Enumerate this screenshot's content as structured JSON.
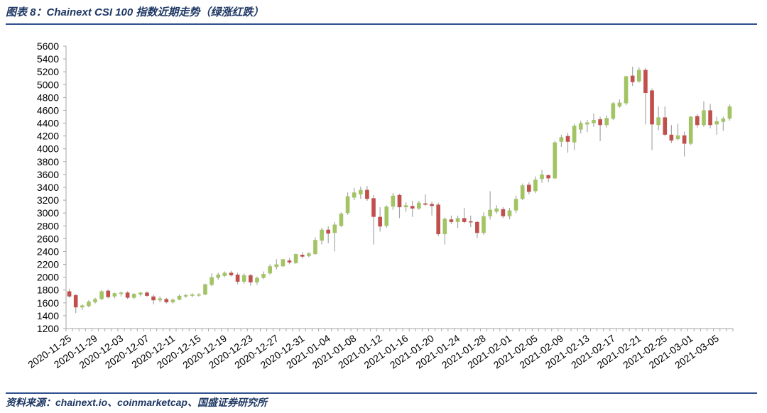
{
  "figure": {
    "title": "图表 8：Chainext CSI 100 指数近期走势（绿涨红跌）",
    "source": "资料来源：chainext.io、coinmarketcap、国盛证券研究所"
  },
  "colors": {
    "up": "#a3c464",
    "down": "#c0504d",
    "wick": "#a6a6a6",
    "axis": "#a6a6a6",
    "rule": "#2f4f8f"
  },
  "chart_data": {
    "type": "candlestick",
    "title": "",
    "ylim": [
      1200,
      5600
    ],
    "yticks": [
      1200,
      1400,
      1600,
      1800,
      2000,
      2200,
      2400,
      2600,
      2800,
      3000,
      3200,
      3400,
      3600,
      3800,
      4000,
      4200,
      4400,
      4600,
      4800,
      5000,
      5200,
      5400,
      5600
    ],
    "grid": false,
    "xticklabels": [
      "2020-11-25",
      "2020-11-29",
      "2020-12-03",
      "2020-12-07",
      "2020-12-11",
      "2020-12-15",
      "2020-12-19",
      "2020-12-23",
      "2020-12-27",
      "2020-12-31",
      "2021-01-04",
      "2021-01-08",
      "2021-01-12",
      "2021-01-16",
      "2021-01-20",
      "2021-01-24",
      "2021-01-28",
      "2021-02-01",
      "2021-02-05",
      "2021-02-09",
      "2021-02-13",
      "2021-02-17",
      "2021-02-21",
      "2021-02-25",
      "2021-03-01",
      "2021-03-05"
    ],
    "candles": [
      {
        "d": "2020-11-25",
        "o": 1780,
        "h": 1820,
        "l": 1680,
        "c": 1700
      },
      {
        "d": "2020-11-26",
        "o": 1720,
        "h": 1740,
        "l": 1440,
        "c": 1530
      },
      {
        "d": "2020-11-27",
        "o": 1530,
        "h": 1580,
        "l": 1490,
        "c": 1560
      },
      {
        "d": "2020-11-28",
        "o": 1550,
        "h": 1640,
        "l": 1530,
        "c": 1620
      },
      {
        "d": "2020-11-29",
        "o": 1610,
        "h": 1680,
        "l": 1590,
        "c": 1660
      },
      {
        "d": "2020-11-30",
        "o": 1660,
        "h": 1800,
        "l": 1640,
        "c": 1780
      },
      {
        "d": "2020-12-01",
        "o": 1790,
        "h": 1810,
        "l": 1670,
        "c": 1690
      },
      {
        "d": "2020-12-02",
        "o": 1700,
        "h": 1760,
        "l": 1670,
        "c": 1750
      },
      {
        "d": "2020-12-03",
        "o": 1740,
        "h": 1780,
        "l": 1700,
        "c": 1760
      },
      {
        "d": "2020-12-04",
        "o": 1760,
        "h": 1780,
        "l": 1660,
        "c": 1680
      },
      {
        "d": "2020-12-05",
        "o": 1680,
        "h": 1750,
        "l": 1660,
        "c": 1740
      },
      {
        "d": "2020-12-06",
        "o": 1730,
        "h": 1770,
        "l": 1700,
        "c": 1760
      },
      {
        "d": "2020-12-07",
        "o": 1760,
        "h": 1780,
        "l": 1690,
        "c": 1710
      },
      {
        "d": "2020-12-08",
        "o": 1700,
        "h": 1730,
        "l": 1580,
        "c": 1640
      },
      {
        "d": "2020-12-09",
        "o": 1640,
        "h": 1700,
        "l": 1610,
        "c": 1670
      },
      {
        "d": "2020-12-10",
        "o": 1660,
        "h": 1680,
        "l": 1590,
        "c": 1610
      },
      {
        "d": "2020-12-11",
        "o": 1610,
        "h": 1670,
        "l": 1590,
        "c": 1650
      },
      {
        "d": "2020-12-12",
        "o": 1650,
        "h": 1730,
        "l": 1640,
        "c": 1710
      },
      {
        "d": "2020-12-13",
        "o": 1700,
        "h": 1740,
        "l": 1680,
        "c": 1720
      },
      {
        "d": "2020-12-14",
        "o": 1710,
        "h": 1750,
        "l": 1690,
        "c": 1730
      },
      {
        "d": "2020-12-15",
        "o": 1720,
        "h": 1750,
        "l": 1700,
        "c": 1730
      },
      {
        "d": "2020-12-16",
        "o": 1730,
        "h": 1900,
        "l": 1720,
        "c": 1890
      },
      {
        "d": "2020-12-17",
        "o": 1880,
        "h": 2060,
        "l": 1860,
        "c": 2000
      },
      {
        "d": "2020-12-18",
        "o": 1990,
        "h": 2070,
        "l": 1960,
        "c": 2040
      },
      {
        "d": "2020-12-19",
        "o": 2020,
        "h": 2090,
        "l": 2000,
        "c": 2070
      },
      {
        "d": "2020-12-20",
        "o": 2070,
        "h": 2100,
        "l": 2010,
        "c": 2030
      },
      {
        "d": "2020-12-21",
        "o": 2040,
        "h": 2070,
        "l": 1890,
        "c": 1930
      },
      {
        "d": "2020-12-22",
        "o": 1930,
        "h": 2060,
        "l": 1900,
        "c": 2030
      },
      {
        "d": "2020-12-23",
        "o": 2030,
        "h": 2050,
        "l": 1870,
        "c": 1920
      },
      {
        "d": "2020-12-24",
        "o": 1920,
        "h": 2010,
        "l": 1880,
        "c": 1990
      },
      {
        "d": "2020-12-25",
        "o": 1990,
        "h": 2090,
        "l": 1970,
        "c": 2050
      },
      {
        "d": "2020-12-26",
        "o": 2060,
        "h": 2200,
        "l": 2040,
        "c": 2170
      },
      {
        "d": "2020-12-27",
        "o": 2160,
        "h": 2280,
        "l": 2120,
        "c": 2200
      },
      {
        "d": "2020-12-28",
        "o": 2170,
        "h": 2280,
        "l": 2160,
        "c": 2280
      },
      {
        "d": "2020-12-29",
        "o": 2260,
        "h": 2300,
        "l": 2200,
        "c": 2230
      },
      {
        "d": "2020-12-30",
        "o": 2220,
        "h": 2370,
        "l": 2210,
        "c": 2360
      },
      {
        "d": "2020-12-31",
        "o": 2350,
        "h": 2390,
        "l": 2290,
        "c": 2320
      },
      {
        "d": "2021-01-01",
        "o": 2330,
        "h": 2390,
        "l": 2310,
        "c": 2370
      },
      {
        "d": "2021-01-02",
        "o": 2360,
        "h": 2620,
        "l": 2350,
        "c": 2580
      },
      {
        "d": "2021-01-03",
        "o": 2570,
        "h": 2770,
        "l": 2510,
        "c": 2740
      },
      {
        "d": "2021-01-04",
        "o": 2740,
        "h": 2790,
        "l": 2530,
        "c": 2680
      },
      {
        "d": "2021-01-05",
        "o": 2690,
        "h": 2860,
        "l": 2400,
        "c": 2820
      },
      {
        "d": "2021-01-06",
        "o": 2800,
        "h": 3010,
        "l": 2780,
        "c": 2990
      },
      {
        "d": "2021-01-07",
        "o": 3000,
        "h": 3320,
        "l": 2970,
        "c": 3260
      },
      {
        "d": "2021-01-08",
        "o": 3240,
        "h": 3390,
        "l": 3200,
        "c": 3320
      },
      {
        "d": "2021-01-09",
        "o": 3290,
        "h": 3410,
        "l": 3220,
        "c": 3360
      },
      {
        "d": "2021-01-10",
        "o": 3360,
        "h": 3420,
        "l": 3190,
        "c": 3220
      },
      {
        "d": "2021-01-11",
        "o": 3230,
        "h": 3280,
        "l": 2510,
        "c": 2940
      },
      {
        "d": "2021-01-12",
        "o": 2940,
        "h": 3090,
        "l": 2710,
        "c": 2790
      },
      {
        "d": "2021-01-13",
        "o": 2800,
        "h": 3120,
        "l": 2770,
        "c": 3100
      },
      {
        "d": "2021-01-14",
        "o": 3100,
        "h": 3310,
        "l": 3050,
        "c": 3270
      },
      {
        "d": "2021-01-15",
        "o": 3280,
        "h": 3300,
        "l": 2920,
        "c": 3090
      },
      {
        "d": "2021-01-16",
        "o": 3090,
        "h": 3170,
        "l": 3020,
        "c": 3120
      },
      {
        "d": "2021-01-17",
        "o": 3110,
        "h": 3190,
        "l": 2940,
        "c": 3070
      },
      {
        "d": "2021-01-18",
        "o": 3070,
        "h": 3190,
        "l": 3050,
        "c": 3160
      },
      {
        "d": "2021-01-19",
        "o": 3150,
        "h": 3290,
        "l": 3110,
        "c": 3130
      },
      {
        "d": "2021-01-20",
        "o": 3140,
        "h": 3180,
        "l": 2960,
        "c": 3110
      },
      {
        "d": "2021-01-21",
        "o": 3130,
        "h": 3160,
        "l": 2640,
        "c": 2670
      },
      {
        "d": "2021-01-22",
        "o": 2670,
        "h": 2930,
        "l": 2510,
        "c": 2910
      },
      {
        "d": "2021-01-23",
        "o": 2900,
        "h": 2960,
        "l": 2830,
        "c": 2860
      },
      {
        "d": "2021-01-24",
        "o": 2860,
        "h": 2960,
        "l": 2770,
        "c": 2920
      },
      {
        "d": "2021-01-25",
        "o": 2920,
        "h": 3080,
        "l": 2840,
        "c": 2860
      },
      {
        "d": "2021-01-26",
        "o": 2870,
        "h": 2960,
        "l": 2780,
        "c": 2860
      },
      {
        "d": "2021-01-27",
        "o": 2860,
        "h": 2880,
        "l": 2610,
        "c": 2690
      },
      {
        "d": "2021-01-28",
        "o": 2690,
        "h": 3010,
        "l": 2660,
        "c": 2950
      },
      {
        "d": "2021-01-29",
        "o": 2950,
        "h": 3340,
        "l": 2900,
        "c": 3050
      },
      {
        "d": "2021-01-30",
        "o": 3020,
        "h": 3120,
        "l": 2990,
        "c": 3070
      },
      {
        "d": "2021-01-31",
        "o": 3060,
        "h": 3090,
        "l": 2920,
        "c": 2950
      },
      {
        "d": "2021-02-01",
        "o": 2950,
        "h": 3080,
        "l": 2900,
        "c": 3040
      },
      {
        "d": "2021-02-02",
        "o": 3040,
        "h": 3270,
        "l": 3000,
        "c": 3220
      },
      {
        "d": "2021-02-03",
        "o": 3220,
        "h": 3460,
        "l": 3200,
        "c": 3430
      },
      {
        "d": "2021-02-04",
        "o": 3440,
        "h": 3480,
        "l": 3290,
        "c": 3330
      },
      {
        "d": "2021-02-05",
        "o": 3340,
        "h": 3570,
        "l": 3310,
        "c": 3520
      },
      {
        "d": "2021-02-06",
        "o": 3530,
        "h": 3670,
        "l": 3470,
        "c": 3600
      },
      {
        "d": "2021-02-07",
        "o": 3590,
        "h": 3600,
        "l": 3480,
        "c": 3540
      },
      {
        "d": "2021-02-08",
        "o": 3540,
        "h": 4120,
        "l": 3530,
        "c": 4100
      },
      {
        "d": "2021-02-09",
        "o": 4110,
        "h": 4220,
        "l": 4030,
        "c": 4180
      },
      {
        "d": "2021-02-10",
        "o": 4200,
        "h": 4250,
        "l": 3940,
        "c": 4110
      },
      {
        "d": "2021-02-11",
        "o": 4100,
        "h": 4390,
        "l": 3980,
        "c": 4360
      },
      {
        "d": "2021-02-12",
        "o": 4300,
        "h": 4440,
        "l": 4240,
        "c": 4400
      },
      {
        "d": "2021-02-13",
        "o": 4380,
        "h": 4450,
        "l": 4260,
        "c": 4410
      },
      {
        "d": "2021-02-14",
        "o": 4400,
        "h": 4550,
        "l": 4340,
        "c": 4450
      },
      {
        "d": "2021-02-15",
        "o": 4460,
        "h": 4500,
        "l": 4120,
        "c": 4370
      },
      {
        "d": "2021-02-16",
        "o": 4370,
        "h": 4520,
        "l": 4330,
        "c": 4480
      },
      {
        "d": "2021-02-17",
        "o": 4470,
        "h": 4730,
        "l": 4450,
        "c": 4710
      },
      {
        "d": "2021-02-18",
        "o": 4660,
        "h": 4770,
        "l": 4640,
        "c": 4720
      },
      {
        "d": "2021-02-19",
        "o": 4710,
        "h": 5140,
        "l": 4680,
        "c": 5130
      },
      {
        "d": "2021-02-20",
        "o": 5140,
        "h": 5280,
        "l": 4980,
        "c": 5040
      },
      {
        "d": "2021-02-21",
        "o": 5050,
        "h": 5270,
        "l": 5030,
        "c": 5230
      },
      {
        "d": "2021-02-22",
        "o": 5230,
        "h": 5260,
        "l": 4380,
        "c": 4870
      },
      {
        "d": "2021-02-23",
        "o": 4910,
        "h": 4940,
        "l": 3980,
        "c": 4380
      },
      {
        "d": "2021-02-24",
        "o": 4370,
        "h": 4660,
        "l": 4290,
        "c": 4490
      },
      {
        "d": "2021-02-25",
        "o": 4490,
        "h": 4660,
        "l": 4200,
        "c": 4220
      },
      {
        "d": "2021-02-26",
        "o": 4220,
        "h": 4370,
        "l": 4090,
        "c": 4130
      },
      {
        "d": "2021-02-27",
        "o": 4150,
        "h": 4390,
        "l": 4130,
        "c": 4210
      },
      {
        "d": "2021-02-28",
        "o": 4210,
        "h": 4270,
        "l": 3880,
        "c": 4080
      },
      {
        "d": "2021-03-01",
        "o": 4080,
        "h": 4510,
        "l": 4060,
        "c": 4500
      },
      {
        "d": "2021-03-02",
        "o": 4510,
        "h": 4540,
        "l": 4330,
        "c": 4370
      },
      {
        "d": "2021-03-03",
        "o": 4370,
        "h": 4740,
        "l": 4340,
        "c": 4600
      },
      {
        "d": "2021-03-04",
        "o": 4600,
        "h": 4700,
        "l": 4320,
        "c": 4370
      },
      {
        "d": "2021-03-05",
        "o": 4380,
        "h": 4500,
        "l": 4220,
        "c": 4430
      },
      {
        "d": "2021-03-06",
        "o": 4420,
        "h": 4500,
        "l": 4280,
        "c": 4470
      },
      {
        "d": "2021-03-07",
        "o": 4470,
        "h": 4690,
        "l": 4440,
        "c": 4660
      }
    ]
  }
}
